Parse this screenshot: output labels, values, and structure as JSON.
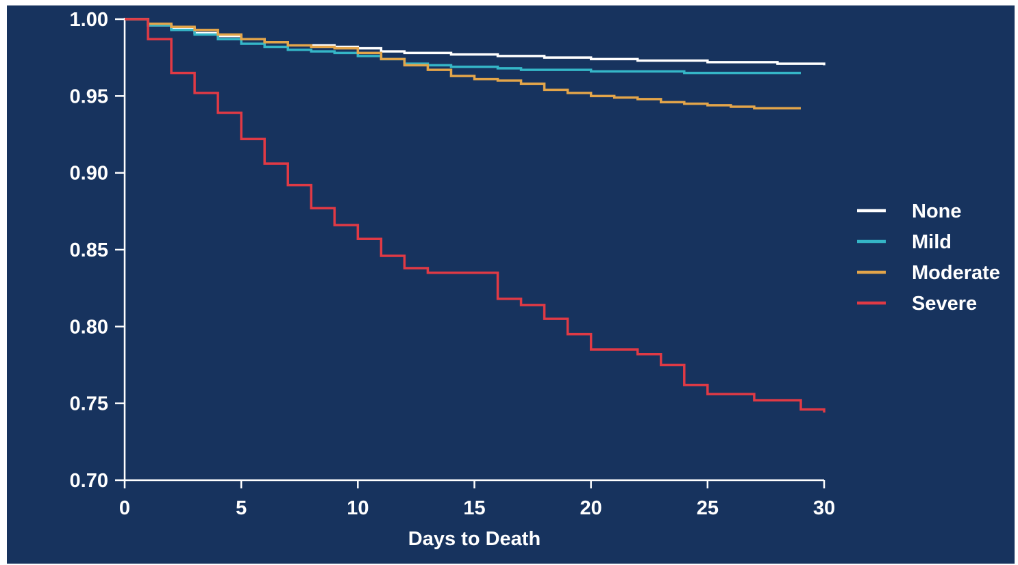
{
  "chart_data": {
    "type": "line",
    "step": true,
    "title": "",
    "xlabel": "Days to Death",
    "ylabel": "",
    "xlim": [
      0,
      30
    ],
    "ylim": [
      0.7,
      1.0
    ],
    "x_ticks": [
      0,
      5,
      10,
      15,
      20,
      25,
      30
    ],
    "x_tick_labels": [
      "0",
      "5",
      "10",
      "15",
      "20",
      "25",
      "30"
    ],
    "y_ticks": [
      0.7,
      0.75,
      0.8,
      0.85,
      0.9,
      0.95,
      1.0
    ],
    "y_tick_labels": [
      "0.70",
      "0.75",
      "0.80",
      "0.85",
      "0.90",
      "0.95",
      "1.00"
    ],
    "grid": false,
    "legend_position": "right",
    "background": "#17335e",
    "series": [
      {
        "name": "None",
        "color": "#ffffff",
        "points": [
          [
            0,
            1.0
          ],
          [
            1,
            0.996
          ],
          [
            2,
            0.994
          ],
          [
            3,
            0.991
          ],
          [
            4,
            0.989
          ],
          [
            5,
            0.987
          ],
          [
            6,
            0.985
          ],
          [
            7,
            0.983
          ],
          [
            8,
            0.983
          ],
          [
            9,
            0.982
          ],
          [
            10,
            0.981
          ],
          [
            11,
            0.979
          ],
          [
            12,
            0.978
          ],
          [
            13,
            0.978
          ],
          [
            14,
            0.977
          ],
          [
            15,
            0.977
          ],
          [
            16,
            0.976
          ],
          [
            17,
            0.976
          ],
          [
            18,
            0.975
          ],
          [
            19,
            0.975
          ],
          [
            20,
            0.974
          ],
          [
            21,
            0.974
          ],
          [
            22,
            0.973
          ],
          [
            23,
            0.973
          ],
          [
            24,
            0.973
          ],
          [
            25,
            0.972
          ],
          [
            26,
            0.972
          ],
          [
            27,
            0.972
          ],
          [
            28,
            0.971
          ],
          [
            29,
            0.971
          ],
          [
            30,
            0.97
          ]
        ]
      },
      {
        "name": "Mild",
        "color": "#35b6c7",
        "points": [
          [
            0,
            1.0
          ],
          [
            1,
            0.996
          ],
          [
            2,
            0.993
          ],
          [
            3,
            0.99
          ],
          [
            4,
            0.987
          ],
          [
            5,
            0.984
          ],
          [
            6,
            0.982
          ],
          [
            7,
            0.98
          ],
          [
            8,
            0.979
          ],
          [
            9,
            0.978
          ],
          [
            10,
            0.976
          ],
          [
            11,
            0.974
          ],
          [
            12,
            0.971
          ],
          [
            13,
            0.97
          ],
          [
            14,
            0.969
          ],
          [
            15,
            0.969
          ],
          [
            16,
            0.968
          ],
          [
            17,
            0.967
          ],
          [
            18,
            0.967
          ],
          [
            19,
            0.967
          ],
          [
            20,
            0.966
          ],
          [
            21,
            0.966
          ],
          [
            22,
            0.966
          ],
          [
            23,
            0.966
          ],
          [
            24,
            0.965
          ],
          [
            25,
            0.965
          ],
          [
            26,
            0.965
          ],
          [
            27,
            0.965
          ],
          [
            28,
            0.965
          ],
          [
            29,
            0.965
          ]
        ]
      },
      {
        "name": "Moderate",
        "color": "#e3a54a",
        "points": [
          [
            0,
            1.0
          ],
          [
            1,
            0.997
          ],
          [
            2,
            0.995
          ],
          [
            3,
            0.993
          ],
          [
            4,
            0.99
          ],
          [
            5,
            0.987
          ],
          [
            6,
            0.985
          ],
          [
            7,
            0.983
          ],
          [
            8,
            0.982
          ],
          [
            9,
            0.981
          ],
          [
            10,
            0.978
          ],
          [
            11,
            0.974
          ],
          [
            12,
            0.97
          ],
          [
            13,
            0.967
          ],
          [
            14,
            0.963
          ],
          [
            15,
            0.961
          ],
          [
            16,
            0.96
          ],
          [
            17,
            0.958
          ],
          [
            18,
            0.954
          ],
          [
            19,
            0.952
          ],
          [
            20,
            0.95
          ],
          [
            21,
            0.949
          ],
          [
            22,
            0.948
          ],
          [
            23,
            0.946
          ],
          [
            24,
            0.945
          ],
          [
            25,
            0.944
          ],
          [
            26,
            0.943
          ],
          [
            27,
            0.942
          ],
          [
            28,
            0.942
          ],
          [
            29,
            0.942
          ]
        ]
      },
      {
        "name": "Severe",
        "color": "#e03a45",
        "points": [
          [
            0,
            1.0
          ],
          [
            1,
            0.987
          ],
          [
            2,
            0.965
          ],
          [
            3,
            0.952
          ],
          [
            4,
            0.939
          ],
          [
            5,
            0.922
          ],
          [
            6,
            0.906
          ],
          [
            7,
            0.892
          ],
          [
            8,
            0.877
          ],
          [
            9,
            0.866
          ],
          [
            10,
            0.857
          ],
          [
            11,
            0.846
          ],
          [
            12,
            0.838
          ],
          [
            13,
            0.835
          ],
          [
            14,
            0.835
          ],
          [
            15,
            0.835
          ],
          [
            16,
            0.818
          ],
          [
            17,
            0.814
          ],
          [
            18,
            0.805
          ],
          [
            19,
            0.795
          ],
          [
            20,
            0.785
          ],
          [
            21,
            0.785
          ],
          [
            22,
            0.782
          ],
          [
            23,
            0.775
          ],
          [
            24,
            0.762
          ],
          [
            25,
            0.756
          ],
          [
            26,
            0.756
          ],
          [
            27,
            0.752
          ],
          [
            28,
            0.752
          ],
          [
            29,
            0.746
          ],
          [
            30,
            0.744
          ]
        ]
      }
    ]
  }
}
